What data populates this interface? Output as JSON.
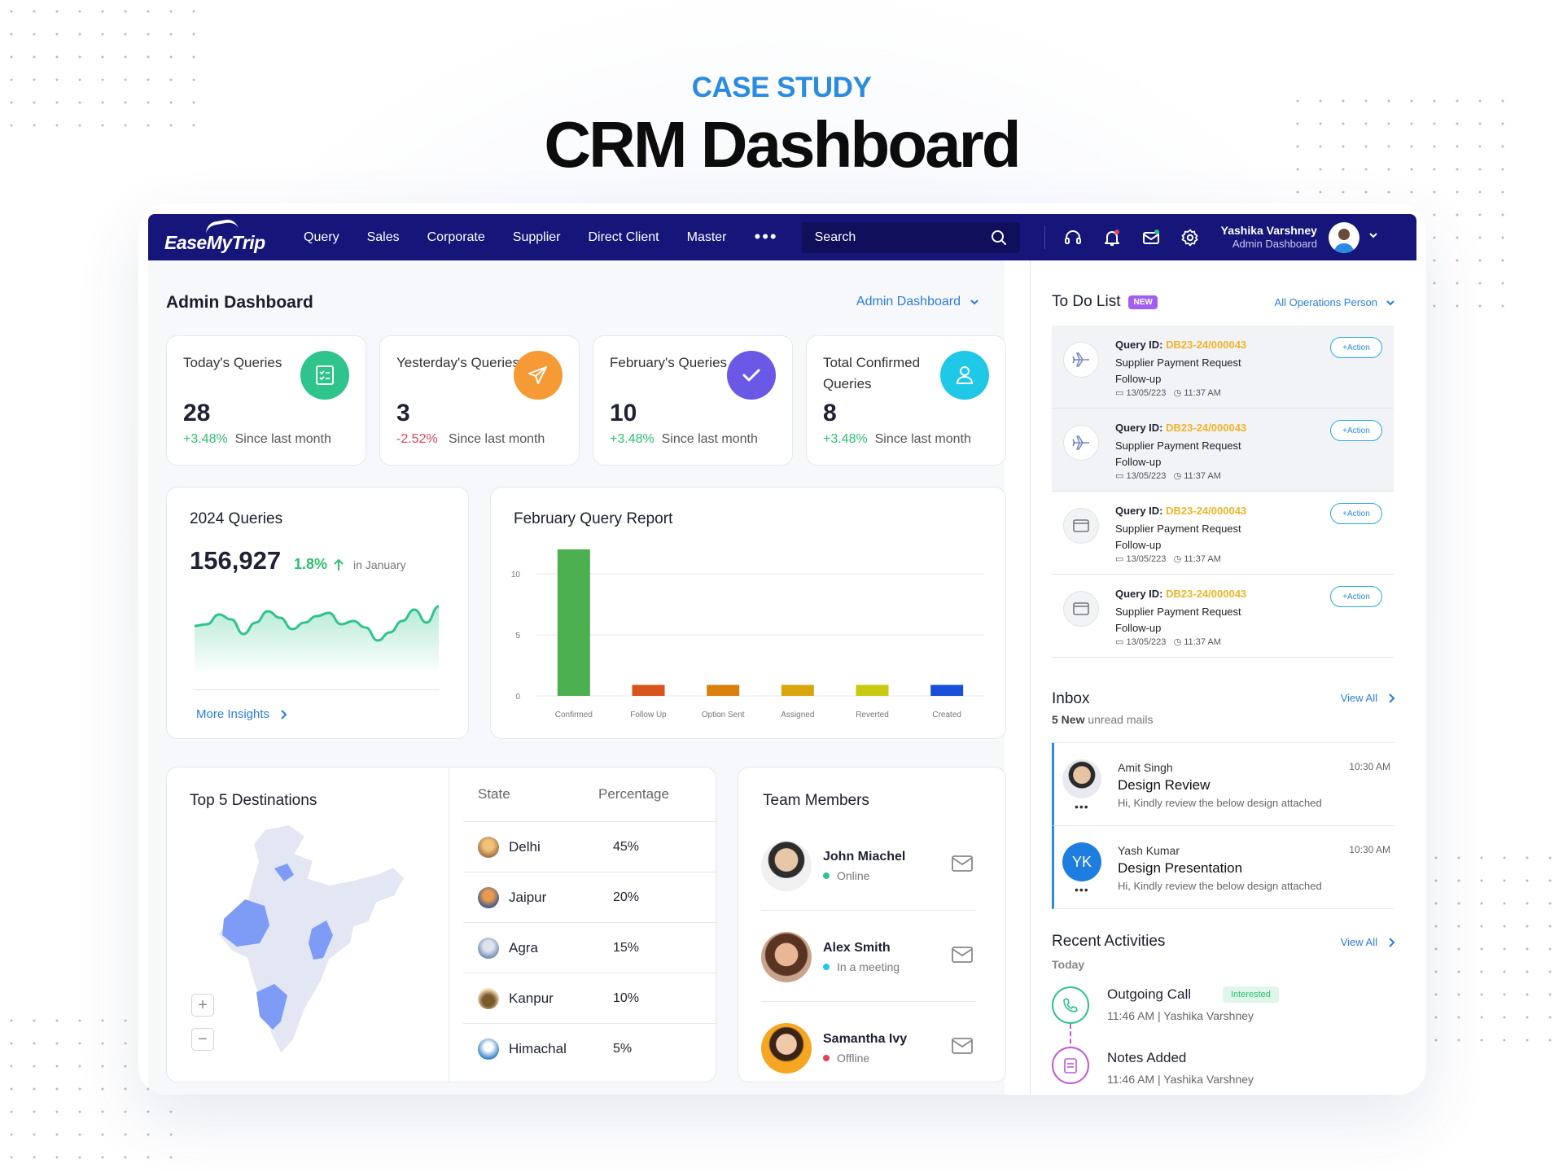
{
  "hero": {
    "kicker": "CASE STUDY",
    "title": "CRM Dashboard"
  },
  "nav": {
    "logo": "EaseMyTrip",
    "menu": [
      "Query",
      "Sales",
      "Corporate",
      "Supplier",
      "Direct Client",
      "Master"
    ],
    "more": "•••",
    "search_placeholder": "Search",
    "user_name": "Yashika Varshney",
    "user_role": "Admin Dashboard"
  },
  "main": {
    "title": "Admin Dashboard",
    "dropdown": "Admin Dashboard",
    "stats": [
      {
        "label": "Today's Queries",
        "value": "28",
        "change": "+3.48%",
        "dir": "pos",
        "since": "Since last month",
        "color": "#2ec48b",
        "icon": "checklist-icon"
      },
      {
        "label": "Yesterday's Queries",
        "value": "3",
        "change": "-2.52%",
        "dir": "neg",
        "since": "Since last month",
        "color": "#f59a35",
        "icon": "send-icon"
      },
      {
        "label": "February's Queries",
        "value": "10",
        "change": "+3.48%",
        "dir": "pos",
        "since": "Since last month",
        "color": "#6a58e6",
        "icon": "check-icon"
      },
      {
        "label": "Total Confirmed Queries",
        "value": "8",
        "change": "+3.48%",
        "dir": "pos",
        "since": "Since last month",
        "color": "#1ec8e6",
        "icon": "user-icon"
      }
    ],
    "queries2024": {
      "title": "2024 Queries",
      "value": "156,927",
      "change": "1.8%",
      "period": "in January",
      "link": "More Insights",
      "sparkline": [
        40,
        38,
        26,
        32,
        50,
        36,
        22,
        30,
        44,
        36,
        28,
        24,
        38,
        34,
        42,
        58,
        48,
        34,
        20,
        36,
        16
      ]
    },
    "report": {
      "title": "February Query Report"
    },
    "destinations": {
      "title": "Top 5 Destinations",
      "col_state": "State",
      "col_percentage": "Percentage",
      "rows": [
        {
          "state": "Delhi",
          "pct": "45%"
        },
        {
          "state": "Jaipur",
          "pct": "20%"
        },
        {
          "state": "Agra",
          "pct": "15%"
        },
        {
          "state": "Kanpur",
          "pct": "10%"
        },
        {
          "state": "Himachal",
          "pct": "5%"
        }
      ],
      "zoom_in": "+",
      "zoom_out": "−"
    },
    "team": {
      "title": "Team Members",
      "members": [
        {
          "name": "John Miachel",
          "status": "Online",
          "status_color": "#2ec48b"
        },
        {
          "name": "Alex Smith",
          "status": "In a meeting",
          "status_color": "#1ec8e6"
        },
        {
          "name": "Samantha Ivy",
          "status": "Offline",
          "status_color": "#e0455a"
        }
      ]
    }
  },
  "chart_data": {
    "type": "bar",
    "title": "February Query Report",
    "categories": [
      "Confirmed",
      "Follow Up",
      "Option Sent",
      "Assigned",
      "Reverted",
      "Created"
    ],
    "values": [
      12,
      0.9,
      0.9,
      0.9,
      0.9,
      0.9
    ],
    "colors": [
      "#4caf50",
      "#d9541a",
      "#d9800f",
      "#d9a60f",
      "#c9c90f",
      "#1a4fd9"
    ],
    "yticks": [
      0,
      5,
      10
    ],
    "ylim": [
      0,
      12
    ]
  },
  "todo": {
    "title": "To Do List",
    "badge": "NEW",
    "filter": "All Operations Person",
    "items": [
      {
        "label": "Query ID:",
        "id": "DB23-24/000043",
        "desc": "Supplier Payment Request",
        "type": "Follow-up",
        "date": "13/05/223",
        "time": "11:37 AM",
        "action": "+Action",
        "icon": "plane-icon"
      },
      {
        "label": "Query ID:",
        "id": "DB23-24/000043",
        "desc": "Supplier Payment Request",
        "type": "Follow-up",
        "date": "13/05/223",
        "time": "11:37 AM",
        "action": "+Action",
        "icon": "plane-icon"
      },
      {
        "label": "Query ID:",
        "id": "DB23-24/000043",
        "desc": "Supplier Payment Request",
        "type": "Follow-up",
        "date": "13/05/223",
        "time": "11:37 AM",
        "action": "+Action",
        "icon": "window-icon"
      },
      {
        "label": "Query ID:",
        "id": "DB23-24/000043",
        "desc": "Supplier Payment Request",
        "type": "Follow-up",
        "date": "13/05/223",
        "time": "11:37 AM",
        "action": "+Action",
        "icon": "window-icon"
      }
    ]
  },
  "inbox": {
    "title": "Inbox",
    "new_count": "5 New",
    "new_text": "unread mails",
    "view_all": "View All",
    "mails": [
      {
        "from": "Amit Singh",
        "subject": "Design Review",
        "preview": "Hi, Kindly review the below design attached",
        "time": "10:30 AM",
        "initials": "",
        "more": "•••"
      },
      {
        "from": "Yash Kumar",
        "subject": "Design Presentation",
        "preview": "Hi, Kindly review the below design attached",
        "time": "10:30 AM",
        "initials": "YK",
        "more": "•••"
      }
    ]
  },
  "activities": {
    "title": "Recent Activities",
    "view_all": "View All",
    "day": "Today",
    "items": [
      {
        "title": "Outgoing Call",
        "tag": "Interested",
        "meta": "11:46 AM | Yashika Varshney"
      },
      {
        "title": "Notes Added",
        "tag": "",
        "meta": "11:46 AM | Yashika Varshney"
      }
    ]
  }
}
